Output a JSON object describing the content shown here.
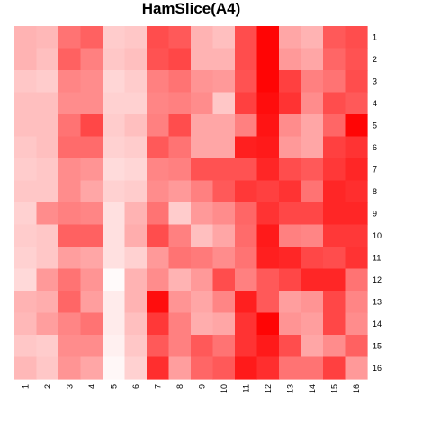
{
  "chart_data": {
    "type": "heatmap",
    "title": "HamSlice(A4)",
    "xlabel": "",
    "ylabel": "",
    "x_labels": [
      "1",
      "2",
      "3",
      "4",
      "5",
      "6",
      "7",
      "8",
      "9",
      "10",
      "11",
      "12",
      "13",
      "14",
      "15",
      "16"
    ],
    "y_labels": [
      "1",
      "2",
      "3",
      "4",
      "5",
      "6",
      "7",
      "8",
      "9",
      "10",
      "11",
      "12",
      "13",
      "14",
      "15",
      "16"
    ],
    "color_scale": {
      "low": "#ffffff",
      "high": "#ff0000"
    },
    "value_range": [
      0,
      1
    ],
    "values": [
      [
        0.3,
        0.28,
        0.55,
        0.62,
        0.2,
        0.22,
        0.7,
        0.65,
        0.3,
        0.25,
        0.7,
        0.98,
        0.35,
        0.3,
        0.65,
        0.7
      ],
      [
        0.3,
        0.25,
        0.62,
        0.5,
        0.22,
        0.25,
        0.68,
        0.72,
        0.3,
        0.3,
        0.7,
        0.98,
        0.4,
        0.35,
        0.6,
        0.68
      ],
      [
        0.22,
        0.2,
        0.48,
        0.45,
        0.16,
        0.2,
        0.5,
        0.55,
        0.42,
        0.4,
        0.68,
        0.98,
        0.75,
        0.5,
        0.55,
        0.7
      ],
      [
        0.25,
        0.25,
        0.45,
        0.45,
        0.18,
        0.18,
        0.48,
        0.5,
        0.45,
        0.22,
        0.75,
        0.95,
        0.8,
        0.45,
        0.7,
        0.65
      ],
      [
        0.25,
        0.25,
        0.55,
        0.72,
        0.2,
        0.25,
        0.5,
        0.7,
        0.35,
        0.35,
        0.5,
        0.92,
        0.45,
        0.35,
        0.6,
        0.98
      ],
      [
        0.22,
        0.25,
        0.58,
        0.58,
        0.18,
        0.2,
        0.65,
        0.55,
        0.35,
        0.35,
        0.88,
        0.9,
        0.4,
        0.35,
        0.75,
        0.8
      ],
      [
        0.2,
        0.22,
        0.45,
        0.42,
        0.14,
        0.16,
        0.48,
        0.5,
        0.68,
        0.68,
        0.68,
        0.85,
        0.7,
        0.65,
        0.78,
        0.85
      ],
      [
        0.22,
        0.22,
        0.45,
        0.35,
        0.18,
        0.2,
        0.45,
        0.4,
        0.5,
        0.65,
        0.78,
        0.75,
        0.8,
        0.55,
        0.85,
        0.82
      ],
      [
        0.18,
        0.45,
        0.5,
        0.48,
        0.12,
        0.3,
        0.55,
        0.2,
        0.4,
        0.45,
        0.6,
        0.8,
        0.72,
        0.72,
        0.85,
        0.85
      ],
      [
        0.2,
        0.22,
        0.62,
        0.62,
        0.12,
        0.32,
        0.7,
        0.5,
        0.25,
        0.35,
        0.58,
        0.9,
        0.5,
        0.48,
        0.78,
        0.78
      ],
      [
        0.18,
        0.22,
        0.38,
        0.35,
        0.12,
        0.18,
        0.4,
        0.55,
        0.52,
        0.45,
        0.55,
        0.88,
        0.85,
        0.72,
        0.7,
        0.8
      ],
      [
        0.15,
        0.4,
        0.55,
        0.42,
        0.02,
        0.3,
        0.45,
        0.3,
        0.4,
        0.7,
        0.5,
        0.65,
        0.72,
        0.85,
        0.85,
        0.55
      ],
      [
        0.3,
        0.32,
        0.6,
        0.38,
        0.08,
        0.3,
        0.95,
        0.42,
        0.35,
        0.48,
        0.88,
        0.65,
        0.38,
        0.42,
        0.72,
        0.48
      ],
      [
        0.28,
        0.38,
        0.48,
        0.55,
        0.08,
        0.25,
        0.78,
        0.5,
        0.32,
        0.35,
        0.8,
        0.98,
        0.42,
        0.38,
        0.72,
        0.45
      ],
      [
        0.22,
        0.2,
        0.45,
        0.45,
        0.06,
        0.22,
        0.65,
        0.5,
        0.65,
        0.55,
        0.8,
        0.9,
        0.7,
        0.35,
        0.45,
        0.62
      ],
      [
        0.28,
        0.22,
        0.42,
        0.35,
        0.03,
        0.18,
        0.82,
        0.38,
        0.6,
        0.65,
        0.9,
        0.82,
        0.55,
        0.55,
        0.75,
        0.4
      ]
    ]
  }
}
